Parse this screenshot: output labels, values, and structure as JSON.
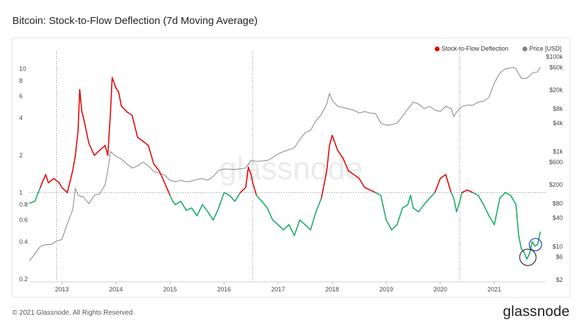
{
  "title": "Bitcoin: Stock-to-Flow Deflection (7d Moving Average)",
  "footer": "© 2021 Glassnode. All Rights Reserved.",
  "brand": "glassnode",
  "watermark": "glassnode",
  "chart_data": {
    "type": "line",
    "x_ticks": [
      "2013",
      "2014",
      "2015",
      "2016",
      "2017",
      "2018",
      "2019",
      "2020",
      "2021"
    ],
    "x_range": [
      2012.4,
      2021.95
    ],
    "y_left": {
      "scale": "log",
      "ticks": [
        "0.2",
        "0.4",
        "0.6",
        "0.8",
        "1",
        "2",
        "4",
        "6",
        "8",
        "10"
      ],
      "range": [
        0.19,
        13
      ]
    },
    "y_right": {
      "scale": "log",
      "ticks": [
        "$2",
        "$6",
        "$10",
        "$40",
        "$80",
        "$200",
        "$600",
        "$1k",
        "$4k",
        "$8k",
        "$20k",
        "$60k",
        "$100k"
      ],
      "range": [
        1.8,
        110000
      ]
    },
    "reference_line_y": 1,
    "halving_dates": [
      2012.9,
      2016.53,
      2020.36
    ],
    "legend_position": "top-right",
    "series": [
      {
        "name": "Stock-to-Flow Deflection",
        "axis": "left",
        "color_above_1": "#e10000",
        "color_below_1": "#16a864",
        "x": [
          2012.4,
          2012.5,
          2012.6,
          2012.7,
          2012.75,
          2012.85,
          2012.95,
          2013.0,
          2013.1,
          2013.2,
          2013.25,
          2013.3,
          2013.33,
          2013.37,
          2013.4,
          2013.5,
          2013.6,
          2013.7,
          2013.8,
          2013.85,
          2013.9,
          2013.93,
          2014.0,
          2014.05,
          2014.1,
          2014.2,
          2014.3,
          2014.4,
          2014.5,
          2014.6,
          2014.7,
          2014.8,
          2014.9,
          2015.0,
          2015.05,
          2015.1,
          2015.2,
          2015.3,
          2015.4,
          2015.5,
          2015.6,
          2015.7,
          2015.8,
          2015.9,
          2016.0,
          2016.1,
          2016.2,
          2016.3,
          2016.4,
          2016.45,
          2016.5,
          2016.53,
          2016.6,
          2016.7,
          2016.8,
          2016.9,
          2017.0,
          2017.1,
          2017.2,
          2017.3,
          2017.4,
          2017.5,
          2017.6,
          2017.7,
          2017.8,
          2017.9,
          2017.95,
          2018.0,
          2018.1,
          2018.2,
          2018.3,
          2018.4,
          2018.5,
          2018.6,
          2018.7,
          2018.8,
          2018.9,
          2019.0,
          2019.1,
          2019.2,
          2019.3,
          2019.4,
          2019.45,
          2019.5,
          2019.6,
          2019.7,
          2019.8,
          2019.9,
          2020.0,
          2020.1,
          2020.2,
          2020.25,
          2020.3,
          2020.36,
          2020.4,
          2020.5,
          2020.6,
          2020.7,
          2020.8,
          2020.9,
          2021.0,
          2021.1,
          2021.2,
          2021.3,
          2021.4,
          2021.45,
          2021.5,
          2021.55,
          2021.6,
          2021.65,
          2021.7,
          2021.75,
          2021.8,
          2021.85
        ],
        "values": [
          0.82,
          0.85,
          1.1,
          1.4,
          1.2,
          1.3,
          1.2,
          1.1,
          1.0,
          1.5,
          2.0,
          3.2,
          6.8,
          4.5,
          4.0,
          2.5,
          2.0,
          2.2,
          2.4,
          2.0,
          4.5,
          8.5,
          7.0,
          6.5,
          5.0,
          4.5,
          4.2,
          2.8,
          2.6,
          2.4,
          1.7,
          1.5,
          1.2,
          0.95,
          0.85,
          0.8,
          0.85,
          0.72,
          0.75,
          0.65,
          0.8,
          0.7,
          0.6,
          0.75,
          1.0,
          0.95,
          0.85,
          1.0,
          1.1,
          1.6,
          1.4,
          1.2,
          0.95,
          0.85,
          0.75,
          0.6,
          0.55,
          0.5,
          0.55,
          0.45,
          0.6,
          0.55,
          0.5,
          0.7,
          0.9,
          1.5,
          2.4,
          2.9,
          2.2,
          1.9,
          1.5,
          1.4,
          1.3,
          1.1,
          1.05,
          1.0,
          0.95,
          0.6,
          0.5,
          0.55,
          0.75,
          0.8,
          0.95,
          0.75,
          0.7,
          0.8,
          0.9,
          1.0,
          1.3,
          1.4,
          1.0,
          0.9,
          0.7,
          0.85,
          1.0,
          1.05,
          1.0,
          0.95,
          0.8,
          0.65,
          0.55,
          0.9,
          1.0,
          0.95,
          0.8,
          0.45,
          0.35,
          0.33,
          0.29,
          0.32,
          0.4,
          0.37,
          0.38,
          0.48
        ]
      },
      {
        "name": "Price [USD]",
        "axis": "right",
        "color": "#808080",
        "x": [
          2012.4,
          2012.5,
          2012.6,
          2012.7,
          2012.8,
          2012.9,
          2013.0,
          2013.1,
          2013.2,
          2013.25,
          2013.3,
          2013.4,
          2013.5,
          2013.6,
          2013.7,
          2013.8,
          2013.85,
          2013.9,
          2014.0,
          2014.1,
          2014.2,
          2014.3,
          2014.4,
          2014.5,
          2014.6,
          2014.7,
          2014.8,
          2014.9,
          2015.0,
          2015.1,
          2015.2,
          2015.3,
          2015.4,
          2015.5,
          2015.6,
          2015.7,
          2015.8,
          2015.9,
          2016.0,
          2016.2,
          2016.4,
          2016.5,
          2016.6,
          2016.8,
          2016.9,
          2017.0,
          2017.1,
          2017.2,
          2017.3,
          2017.4,
          2017.5,
          2017.6,
          2017.7,
          2017.8,
          2017.9,
          2017.95,
          2018.0,
          2018.1,
          2018.2,
          2018.3,
          2018.4,
          2018.5,
          2018.6,
          2018.7,
          2018.8,
          2018.9,
          2019.0,
          2019.1,
          2019.2,
          2019.3,
          2019.4,
          2019.5,
          2019.6,
          2019.7,
          2019.8,
          2019.9,
          2020.0,
          2020.1,
          2020.2,
          2020.25,
          2020.3,
          2020.4,
          2020.5,
          2020.6,
          2020.7,
          2020.8,
          2020.9,
          2021.0,
          2021.1,
          2021.2,
          2021.3,
          2021.35,
          2021.4,
          2021.5,
          2021.6,
          2021.7,
          2021.8,
          2021.85
        ],
        "values": [
          5,
          7,
          10,
          11,
          11,
          13,
          14,
          30,
          60,
          170,
          120,
          110,
          80,
          120,
          130,
          200,
          400,
          1000,
          800,
          700,
          550,
          450,
          500,
          600,
          500,
          380,
          350,
          320,
          250,
          230,
          250,
          230,
          240,
          260,
          270,
          250,
          300,
          400,
          430,
          420,
          450,
          650,
          620,
          650,
          750,
          900,
          1000,
          1100,
          1200,
          1800,
          2500,
          2800,
          4500,
          6000,
          10000,
          17000,
          12000,
          9000,
          8500,
          8000,
          7500,
          6500,
          7000,
          6500,
          6400,
          4000,
          3600,
          3700,
          4000,
          5500,
          8000,
          11000,
          10000,
          8000,
          9000,
          7500,
          7000,
          9000,
          8000,
          5500,
          6800,
          9000,
          9500,
          9500,
          11000,
          11500,
          14000,
          28000,
          45000,
          55000,
          58000,
          60000,
          55000,
          35000,
          35000,
          45000,
          48000,
          60000
        ]
      }
    ]
  }
}
